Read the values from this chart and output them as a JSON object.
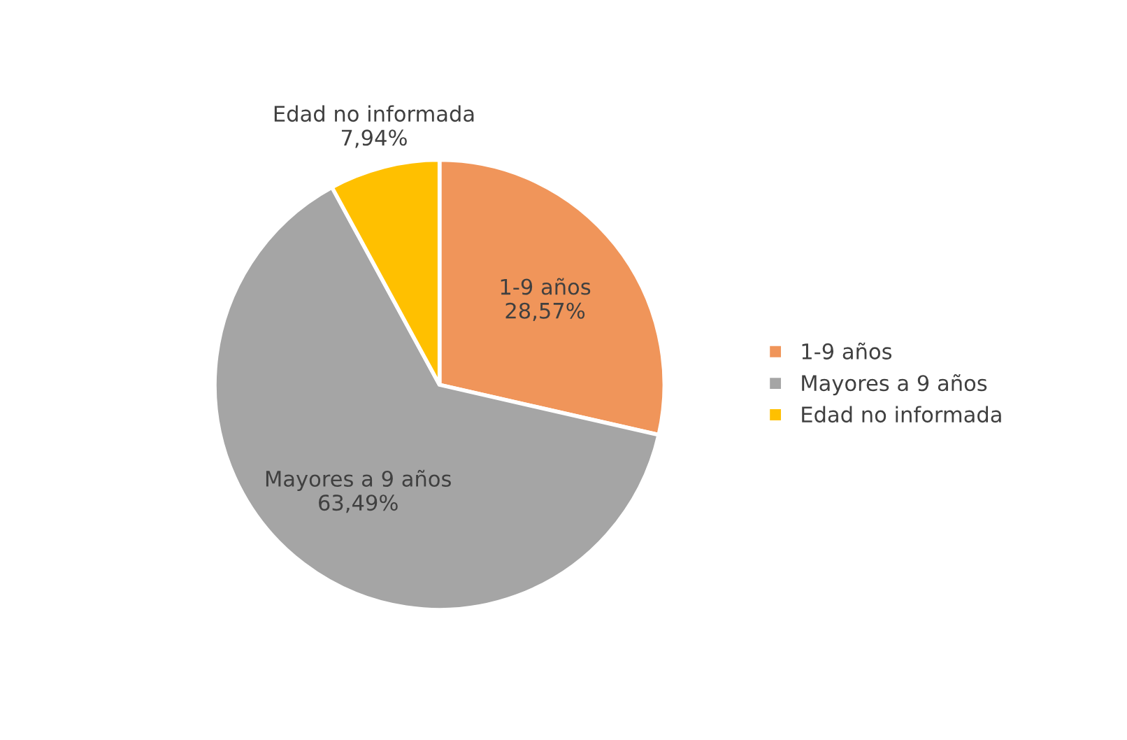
{
  "chart_data": {
    "type": "pie",
    "categories": [
      "1-9 años",
      "Mayores a 9 años",
      "Edad no informada"
    ],
    "values": [
      28.57,
      63.49,
      7.94
    ],
    "value_labels": [
      "28,57%",
      "63,49%",
      "7,94%"
    ],
    "colors": [
      "#f0955a",
      "#a5a5a5",
      "#ffc000"
    ],
    "legend": "right"
  }
}
